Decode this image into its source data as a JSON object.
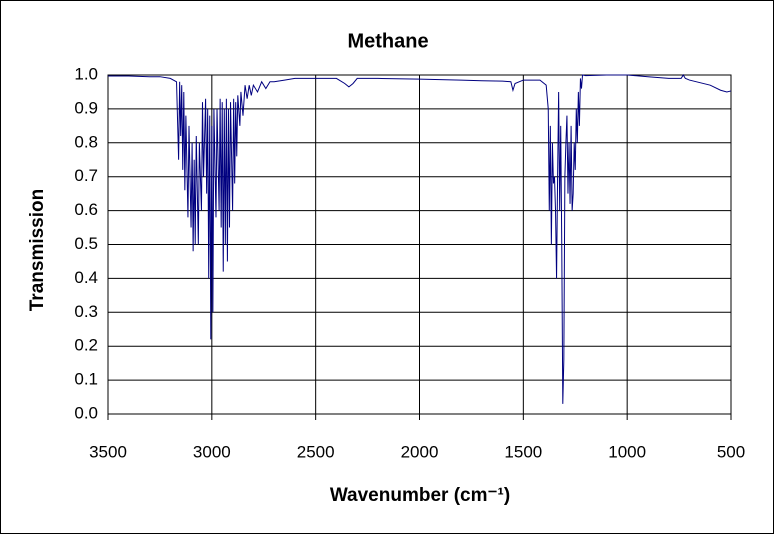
{
  "chart_data": {
    "type": "line",
    "title": "Methane",
    "xlabel": "Wavenumber (cm⁻¹)",
    "ylabel": "Transmission",
    "color": "#000080",
    "grid": true,
    "xlim": [
      3500,
      500
    ],
    "xticks": [
      3500,
      3000,
      2500,
      2000,
      1500,
      1000,
      500
    ],
    "ylim": [
      0,
      1
    ],
    "yticks": [
      {
        "value": 0,
        "label": "0.0"
      },
      0.1,
      0.2,
      0.3,
      0.4,
      0.5,
      0.6,
      0.7,
      0.8,
      0.9,
      {
        "value": 1,
        "label": "1.0"
      }
    ],
    "x": [
      3500,
      3400,
      3300,
      3250,
      3200,
      3170,
      3160,
      3155,
      3150,
      3145,
      3140,
      3135,
      3130,
      3125,
      3115,
      3110,
      3100,
      3095,
      3090,
      3085,
      3080,
      3075,
      3065,
      3060,
      3050,
      3045,
      3040,
      3030,
      3025,
      3020,
      3015,
      3010,
      3005,
      3000,
      2995,
      2990,
      2980,
      2975,
      2965,
      2960,
      2955,
      2950,
      2945,
      2940,
      2935,
      2930,
      2925,
      2920,
      2915,
      2910,
      2900,
      2895,
      2890,
      2885,
      2880,
      2875,
      2865,
      2860,
      2850,
      2840,
      2830,
      2820,
      2810,
      2800,
      2780,
      2760,
      2740,
      2720,
      2700,
      2650,
      2600,
      2500,
      2400,
      2360,
      2340,
      2320,
      2300,
      2200,
      2000,
      1800,
      1700,
      1600,
      1560,
      1550,
      1540,
      1500,
      1420,
      1390,
      1380,
      1375,
      1370,
      1365,
      1360,
      1355,
      1350,
      1345,
      1340,
      1335,
      1330,
      1325,
      1320,
      1315,
      1310,
      1305,
      1300,
      1295,
      1290,
      1285,
      1280,
      1275,
      1270,
      1265,
      1260,
      1255,
      1250,
      1245,
      1240,
      1235,
      1230,
      1225,
      1220,
      1215,
      1200,
      1100,
      1000,
      900,
      800,
      740,
      730,
      720,
      700,
      600,
      550,
      520,
      500
    ],
    "values": [
      0.997,
      0.997,
      0.995,
      0.995,
      0.99,
      0.98,
      0.75,
      0.98,
      0.82,
      0.97,
      0.72,
      0.95,
      0.66,
      0.88,
      0.58,
      0.85,
      0.55,
      0.8,
      0.48,
      0.75,
      0.5,
      0.82,
      0.5,
      0.8,
      0.6,
      0.92,
      0.7,
      0.93,
      0.65,
      0.9,
      0.4,
      0.88,
      0.22,
      0.85,
      0.3,
      0.9,
      0.58,
      0.9,
      0.6,
      0.93,
      0.55,
      0.92,
      0.42,
      0.9,
      0.5,
      0.93,
      0.45,
      0.9,
      0.55,
      0.92,
      0.6,
      0.93,
      0.68,
      0.92,
      0.76,
      0.94,
      0.85,
      0.95,
      0.88,
      0.97,
      0.93,
      0.97,
      0.94,
      0.97,
      0.95,
      0.98,
      0.96,
      0.98,
      0.98,
      0.985,
      0.99,
      0.99,
      0.99,
      0.975,
      0.965,
      0.975,
      0.99,
      0.99,
      0.988,
      0.985,
      0.983,
      0.982,
      0.98,
      0.955,
      0.975,
      0.985,
      0.985,
      0.97,
      0.9,
      0.6,
      0.85,
      0.5,
      0.8,
      0.68,
      0.7,
      0.6,
      0.4,
      0.7,
      0.95,
      0.6,
      0.85,
      0.5,
      0.03,
      0.16,
      0.7,
      0.8,
      0.88,
      0.65,
      0.8,
      0.62,
      0.85,
      0.6,
      0.65,
      0.8,
      0.72,
      0.9,
      0.8,
      0.95,
      0.85,
      0.99,
      0.96,
      1.0,
      0.998,
      1.0,
      1.0,
      0.995,
      0.99,
      0.99,
      1.0,
      0.99,
      0.985,
      0.97,
      0.955,
      0.95,
      0.953
    ]
  }
}
